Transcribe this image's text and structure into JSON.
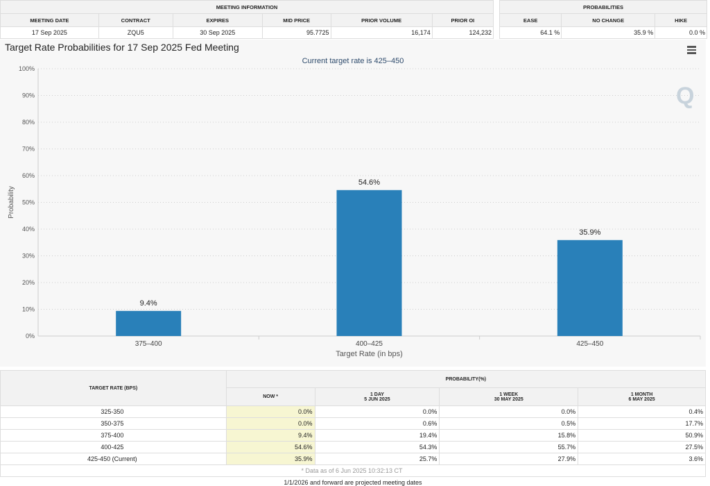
{
  "meeting_info": {
    "title": "MEETING INFORMATION",
    "headers": [
      "MEETING DATE",
      "CONTRACT",
      "EXPIRES",
      "MID PRICE",
      "PRIOR VOLUME",
      "PRIOR OI"
    ],
    "values": [
      "17 Sep 2025",
      "ZQU5",
      "30 Sep 2025",
      "95.7725",
      "16,174",
      "124,232"
    ]
  },
  "probabilities": {
    "title": "PROBABILITIES",
    "headers": [
      "EASE",
      "NO CHANGE",
      "HIKE"
    ],
    "values": [
      "64.1 %",
      "35.9 %",
      "0.0 %"
    ]
  },
  "chart_data": {
    "type": "bar",
    "title": "Target Rate Probabilities for 17 Sep 2025 Fed Meeting",
    "subtitle": "Current target rate is 425–450",
    "xlabel": "Target Rate (in bps)",
    "ylabel": "Probability",
    "categories": [
      "375–400",
      "400–425",
      "425–450"
    ],
    "values": [
      9.4,
      54.6,
      35.9
    ],
    "data_labels": [
      "9.4%",
      "54.6%",
      "35.9%"
    ],
    "ylim": [
      0,
      100
    ],
    "yticks": [
      "0%",
      "10%",
      "20%",
      "30%",
      "40%",
      "50%",
      "60%",
      "70%",
      "80%",
      "90%",
      "100%"
    ],
    "grid": true,
    "color": "#2980b9"
  },
  "table": {
    "rate_header": "TARGET RATE (BPS)",
    "prob_header": "PROBABILITY(%)",
    "cols": [
      {
        "l1": "NOW *",
        "l2": ""
      },
      {
        "l1": "1 DAY",
        "l2": "5 JUN 2025"
      },
      {
        "l1": "1 WEEK",
        "l2": "30 MAY 2025"
      },
      {
        "l1": "1 MONTH",
        "l2": "6 MAY 2025"
      }
    ],
    "rows": [
      [
        "325-350",
        "0.0%",
        "0.0%",
        "0.0%",
        "0.4%"
      ],
      [
        "350-375",
        "0.0%",
        "0.6%",
        "0.5%",
        "17.7%"
      ],
      [
        "375-400",
        "9.4%",
        "19.4%",
        "15.8%",
        "50.9%"
      ],
      [
        "400-425",
        "54.6%",
        "54.3%",
        "55.7%",
        "27.5%"
      ],
      [
        "425-450 (Current)",
        "35.9%",
        "25.7%",
        "27.9%",
        "3.6%"
      ]
    ],
    "note": "* Data as of 6 Jun 2025 10:32:13 CT"
  },
  "footer": "1/1/2026 and forward are projected meeting dates"
}
